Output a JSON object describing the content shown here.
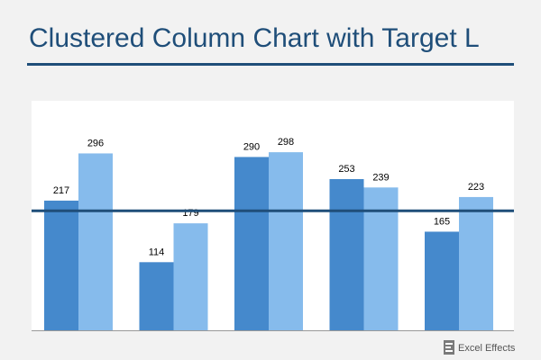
{
  "chart_data": {
    "type": "bar",
    "title": "Clustered Column Chart with Target L",
    "categories": [
      "",
      "",
      "",
      "",
      ""
    ],
    "series": [
      {
        "values": [
          217,
          114,
          290,
          253,
          165
        ],
        "color": "#4589cc"
      },
      {
        "values": [
          296,
          179,
          298,
          239,
          223
        ],
        "color": "#86bbec"
      }
    ],
    "target": {
      "value": 200,
      "color": "#1f4e79"
    },
    "ylim": [
      0,
      400
    ],
    "grid": false,
    "legend": "none"
  },
  "logo": {
    "text": "Excel Effects"
  },
  "colors": {
    "title": "#1f4e79",
    "background": "#f2f2f2"
  }
}
